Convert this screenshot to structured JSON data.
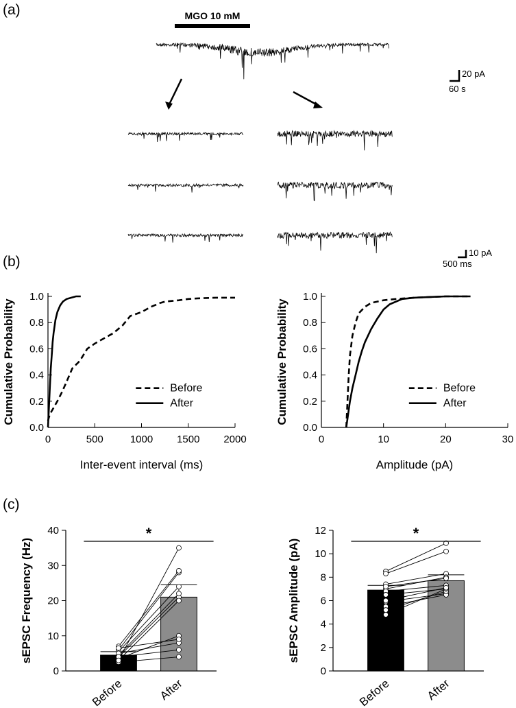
{
  "panel_labels": [
    "(a)",
    "(b)",
    "(c)"
  ],
  "trace": {
    "drug_label": "MGO 10 mM",
    "scale_big": {
      "y": "20 pA",
      "x": "60 s"
    },
    "scale_small": {
      "y": "10 pA",
      "x": "500 ms"
    }
  },
  "chart_data": [
    {
      "type": "line",
      "panel": "b-left",
      "xlabel": "Inter-event interval (ms)",
      "ylabel": "Cumulative Probability",
      "xlim": [
        0,
        2000
      ],
      "ylim": [
        0,
        1.0
      ],
      "xticks": [
        0,
        500,
        1000,
        1500,
        2000
      ],
      "yticks": [
        0.0,
        0.2,
        0.4,
        0.6,
        0.8,
        1.0
      ],
      "legend_position": "bottom-right",
      "series": [
        {
          "name": "Before",
          "style": "dashed",
          "x": [
            0,
            20,
            60,
            100,
            150,
            200,
            260,
            330,
            360,
            420,
            500,
            600,
            700,
            800,
            880,
            1000,
            1100,
            1200,
            1250,
            1400,
            1500,
            1600,
            1800,
            2000
          ],
          "y": [
            0.05,
            0.1,
            0.15,
            0.2,
            0.27,
            0.35,
            0.45,
            0.5,
            0.53,
            0.6,
            0.64,
            0.68,
            0.72,
            0.78,
            0.85,
            0.88,
            0.92,
            0.95,
            0.96,
            0.97,
            0.98,
            0.985,
            0.99,
            0.99
          ]
        },
        {
          "name": "After",
          "style": "solid",
          "x": [
            0,
            10,
            20,
            30,
            40,
            50,
            60,
            80,
            100,
            130,
            160,
            200,
            250,
            300,
            350
          ],
          "y": [
            0.0,
            0.15,
            0.3,
            0.45,
            0.55,
            0.65,
            0.72,
            0.82,
            0.88,
            0.93,
            0.96,
            0.98,
            0.99,
            1.0,
            1.0
          ]
        }
      ]
    },
    {
      "type": "line",
      "panel": "b-right",
      "xlabel": "Amplitude (pA)",
      "ylabel": "Cumulative Probability",
      "xlim": [
        0,
        30
      ],
      "ylim": [
        0,
        1.0
      ],
      "xticks": [
        0,
        10,
        20,
        30
      ],
      "yticks": [
        0.0,
        0.2,
        0.4,
        0.6,
        0.8,
        1.0
      ],
      "legend_position": "bottom-right",
      "series": [
        {
          "name": "Before",
          "style": "dashed",
          "x": [
            4.0,
            4.2,
            4.4,
            4.6,
            5.0,
            5.5,
            6.0,
            7.0,
            8.0,
            9.0,
            10.0,
            12.0,
            15.0,
            20.0,
            24.0
          ],
          "y": [
            0.0,
            0.2,
            0.4,
            0.55,
            0.7,
            0.8,
            0.87,
            0.92,
            0.95,
            0.96,
            0.97,
            0.98,
            0.99,
            1.0,
            1.0
          ]
        },
        {
          "name": "After",
          "style": "solid",
          "x": [
            4.0,
            4.3,
            4.6,
            5.0,
            5.5,
            6.0,
            6.5,
            7.0,
            8.0,
            9.0,
            10.0,
            11.0,
            13.0,
            15.0,
            20.0,
            24.0
          ],
          "y": [
            0.0,
            0.1,
            0.2,
            0.3,
            0.4,
            0.5,
            0.58,
            0.65,
            0.75,
            0.83,
            0.9,
            0.94,
            0.98,
            0.99,
            1.0,
            1.0
          ]
        }
      ]
    },
    {
      "type": "bar",
      "panel": "c-left",
      "ylabel": "sEPSC Frequency (Hz)",
      "categories": [
        "Before",
        "After"
      ],
      "ylim": [
        0,
        40
      ],
      "yticks": [
        0,
        10,
        20,
        30,
        40
      ],
      "values": [
        4.5,
        21.0
      ],
      "errors": [
        1.0,
        3.5
      ],
      "bar_colors": [
        "#000000",
        "#8c8c8c"
      ],
      "significance": "*",
      "paired": [
        [
          3.0,
          35.0
        ],
        [
          6.0,
          28.0
        ],
        [
          5.5,
          24.0
        ],
        [
          7.0,
          28.5
        ],
        [
          4.0,
          21.0
        ],
        [
          4.5,
          22.0
        ],
        [
          3.5,
          10.0
        ],
        [
          5.0,
          8.0
        ],
        [
          2.5,
          4.0
        ],
        [
          6.5,
          9.0
        ],
        [
          4.0,
          6.0
        ],
        [
          3.0,
          20.0
        ]
      ]
    },
    {
      "type": "bar",
      "panel": "c-right",
      "ylabel": "sEPSC Amplitude (pA)",
      "categories": [
        "Before",
        "After"
      ],
      "ylim": [
        0,
        12
      ],
      "yticks": [
        0,
        2,
        4,
        6,
        8,
        10,
        12
      ],
      "values": [
        6.9,
        7.7
      ],
      "errors": [
        0.4,
        0.5
      ],
      "bar_colors": [
        "#000000",
        "#8c8c8c"
      ],
      "significance": "*",
      "paired": [
        [
          8.5,
          10.9
        ],
        [
          8.3,
          10.2
        ],
        [
          7.4,
          8.3
        ],
        [
          7.0,
          8.0
        ],
        [
          6.8,
          7.3
        ],
        [
          6.5,
          7.0
        ],
        [
          5.9,
          6.6
        ],
        [
          5.5,
          6.5
        ],
        [
          5.2,
          6.8
        ],
        [
          4.8,
          7.0
        ],
        [
          7.2,
          7.9
        ],
        [
          6.0,
          7.1
        ]
      ]
    }
  ]
}
